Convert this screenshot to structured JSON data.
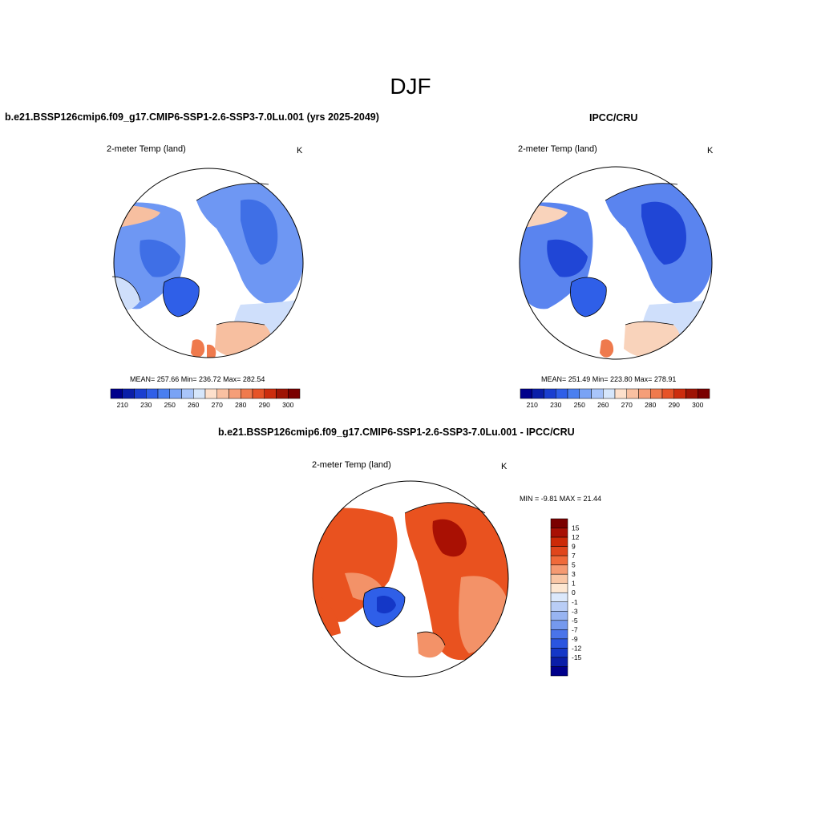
{
  "title": "DJF",
  "panels": {
    "left": {
      "header": "b.e21.BSSP126cmip6.f09_g17.CMIP6-SSP1-2.6-SSP3-7.0Lu.001 (yrs 2025-2049)",
      "variable": "2-meter Temp (land)",
      "units": "K",
      "stats": "MEAN= 257.66  Min= 236.72  Max= 282.54"
    },
    "right": {
      "header": "IPCC/CRU",
      "variable": "2-meter Temp (land)",
      "units": "K",
      "stats": "MEAN= 251.49  Min= 223.80  Max= 278.91"
    },
    "diff": {
      "header": "b.e21.BSSP126cmip6.f09_g17.CMIP6-SSP1-2.6-SSP3-7.0Lu.001 - IPCC/CRU",
      "variable": "2-meter Temp (land)",
      "units": "K",
      "stats": "MIN =  -9.81 MAX =  21.44"
    }
  },
  "abs_colorbar": {
    "colors": [
      "#00008b",
      "#0a1ea8",
      "#1a3fd0",
      "#2f5fe8",
      "#4a7ff0",
      "#7aa3f5",
      "#a9c5fa",
      "#d6e6fb",
      "#fde0cc",
      "#f9c0a1",
      "#f59e78",
      "#ef7a4d",
      "#e65327",
      "#cc2d0e",
      "#9e1405",
      "#7a0000"
    ],
    "labels": [
      "210",
      "230",
      "250",
      "260",
      "270",
      "280",
      "290",
      "300"
    ]
  },
  "diff_colorbar": {
    "colors": [
      "#7a0000",
      "#a81005",
      "#cc2a08",
      "#e0461c",
      "#f06a3a",
      "#f59a72",
      "#f9c6a5",
      "#fde7d2",
      "#dbe8fb",
      "#b9cdf6",
      "#98b4f2",
      "#7599ee",
      "#4a74ea",
      "#2a55e0",
      "#1437c7",
      "#0a1ea8",
      "#00008b"
    ],
    "labels": [
      "15",
      "12",
      "9",
      "7",
      "5",
      "3",
      "1",
      "0",
      "-1",
      "-3",
      "-5",
      "-7",
      "-9",
      "-12",
      "-15"
    ]
  },
  "map_colors": {
    "left": {
      "outer": "#6e97f3",
      "inner": "#3f6fe6",
      "warm": "#f7bfa0",
      "hot": "#ef7a4d",
      "cool": "#cfdffb"
    },
    "right": {
      "outer": "#5a84ef",
      "inner": "#2046d6",
      "warm": "#f9d3bb",
      "hot": "#ef7a4d",
      "cool": "#cfdffb"
    },
    "diff": {
      "main": "#e9521f",
      "light": "#f39268",
      "dark": "#a91003",
      "cold": "#2f5fe8",
      "pale": "#f9c6a5"
    }
  }
}
